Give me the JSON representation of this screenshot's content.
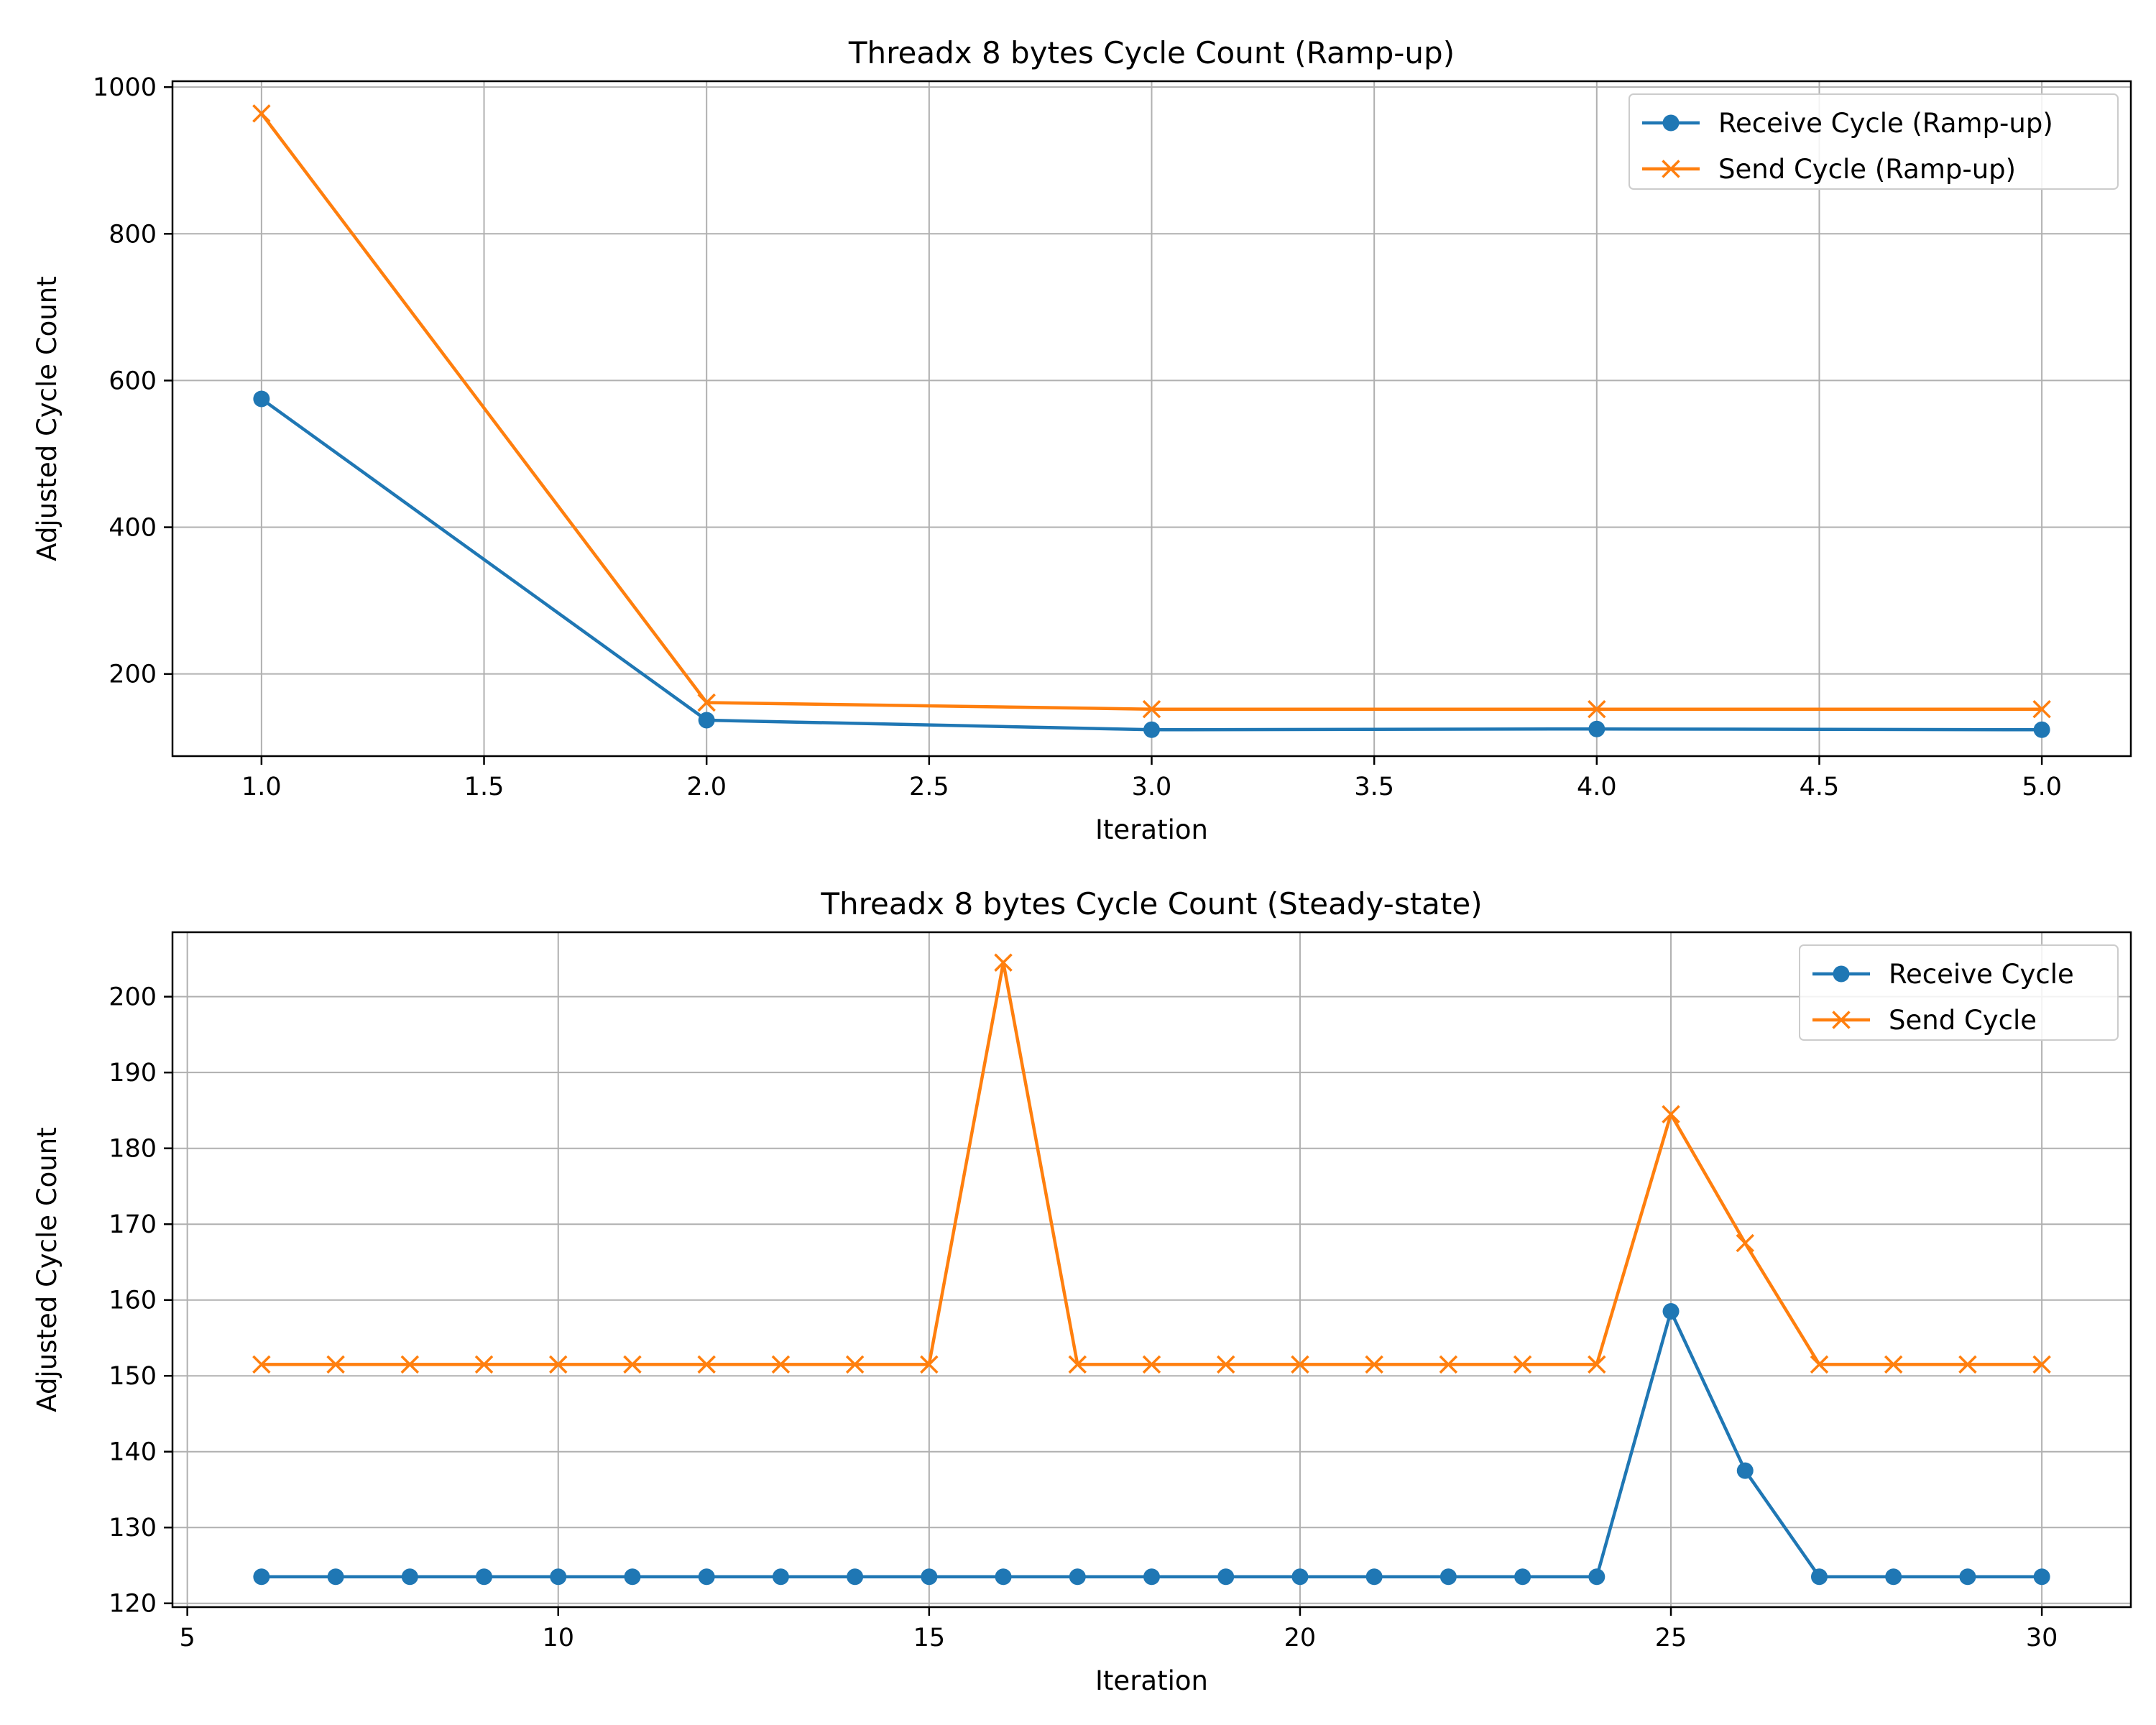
{
  "chart_data": [
    {
      "type": "line",
      "title": "Threadx 8 bytes Cycle Count (Ramp-up)",
      "xlabel": "Iteration",
      "ylabel": "Adjusted Cycle Count",
      "xlim": [
        0.8,
        5.2
      ],
      "ylim": [
        88,
        1008
      ],
      "xticks": [
        1.0,
        1.5,
        2.0,
        2.5,
        3.0,
        3.5,
        4.0,
        4.5,
        5.0
      ],
      "xtick_labels": [
        "1.0",
        "1.5",
        "2.0",
        "2.5",
        "3.0",
        "3.5",
        "4.0",
        "4.5",
        "5.0"
      ],
      "yticks": [
        200,
        400,
        600,
        800,
        1000
      ],
      "ytick_labels": [
        "200",
        "400",
        "600",
        "800",
        "1000"
      ],
      "grid": true,
      "legend_position": "upper-right",
      "x": [
        1,
        2,
        3,
        4,
        5
      ],
      "series": [
        {
          "name": "Receive Cycle (Ramp-up)",
          "values": [
            575,
            137,
            124,
            125,
            124
          ],
          "color": "#1f77b4",
          "marker": "circle"
        },
        {
          "name": "Send Cycle (Ramp-up)",
          "values": [
            964,
            161,
            152,
            152,
            152
          ],
          "color": "#ff7f0e",
          "marker": "x"
        }
      ]
    },
    {
      "type": "line",
      "title": "Threadx 8 bytes Cycle Count (Steady-state)",
      "xlabel": "Iteration",
      "ylabel": "Adjusted Cycle Count",
      "xlim": [
        4.8,
        31.2
      ],
      "ylim": [
        119.5,
        208.5
      ],
      "xticks": [
        5,
        10,
        15,
        20,
        25,
        30
      ],
      "xtick_labels": [
        "5",
        "10",
        "15",
        "20",
        "25",
        "30"
      ],
      "yticks": [
        120,
        130,
        140,
        150,
        160,
        170,
        180,
        190,
        200
      ],
      "ytick_labels": [
        "120",
        "130",
        "140",
        "150",
        "160",
        "170",
        "180",
        "190",
        "200"
      ],
      "grid": true,
      "legend_position": "upper-right",
      "x": [
        6,
        7,
        8,
        9,
        10,
        11,
        12,
        13,
        14,
        15,
        16,
        17,
        18,
        19,
        20,
        21,
        22,
        23,
        24,
        25,
        26,
        27,
        28,
        29,
        30
      ],
      "series": [
        {
          "name": "Receive Cycle",
          "values": [
            123.5,
            123.5,
            123.5,
            123.5,
            123.5,
            123.5,
            123.5,
            123.5,
            123.5,
            123.5,
            123.5,
            123.5,
            123.5,
            123.5,
            123.5,
            123.5,
            123.5,
            123.5,
            123.5,
            158.5,
            137.5,
            123.5,
            123.5,
            123.5,
            123.5
          ],
          "color": "#1f77b4",
          "marker": "circle"
        },
        {
          "name": "Send Cycle",
          "values": [
            151.5,
            151.5,
            151.5,
            151.5,
            151.5,
            151.5,
            151.5,
            151.5,
            151.5,
            151.5,
            204.5,
            151.5,
            151.5,
            151.5,
            151.5,
            151.5,
            151.5,
            151.5,
            151.5,
            184.5,
            167.5,
            151.5,
            151.5,
            151.5,
            151.5
          ],
          "color": "#ff7f0e",
          "marker": "x"
        }
      ]
    }
  ]
}
